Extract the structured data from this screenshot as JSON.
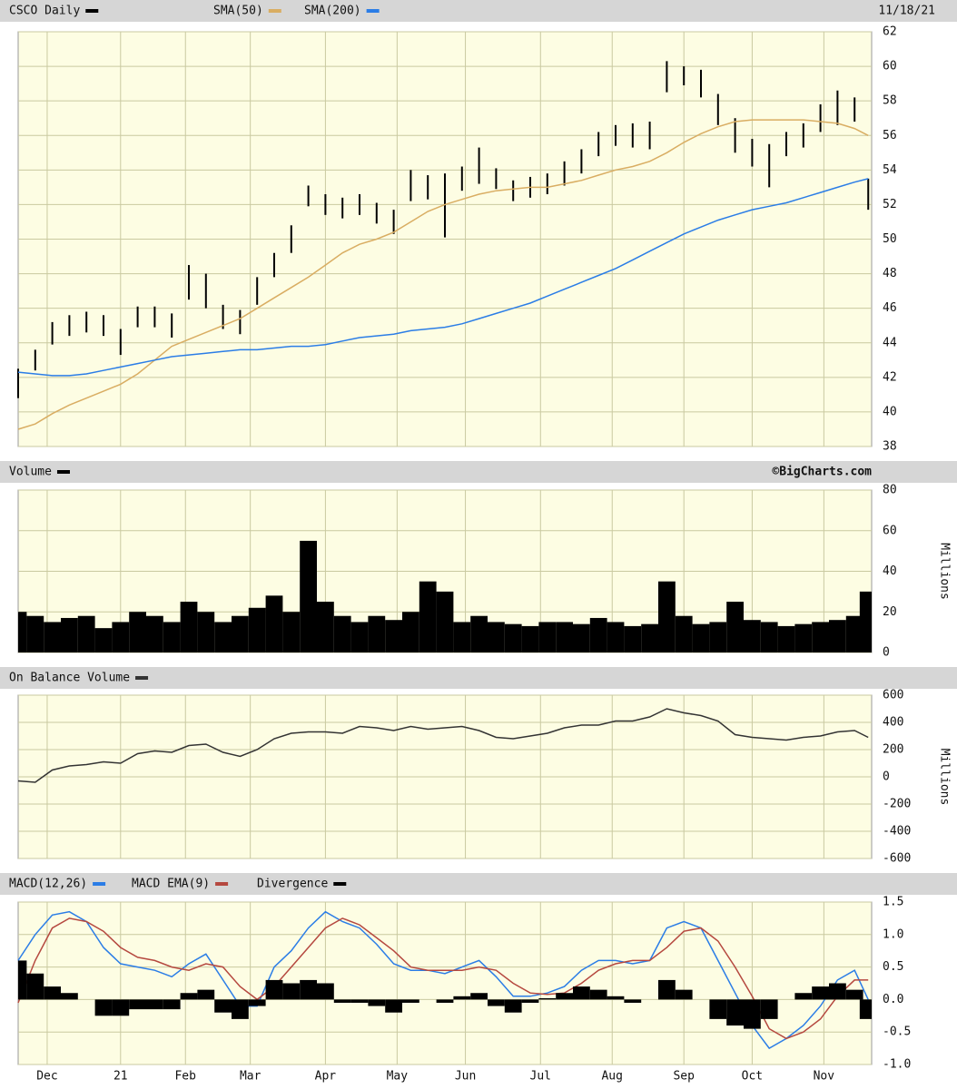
{
  "chart_data": [
    {
      "type": "ohlc",
      "date": "11/18/21",
      "xlim": [
        0,
        250
      ],
      "ylim": [
        38,
        62
      ],
      "yticks": [
        38,
        40,
        42,
        44,
        46,
        48,
        50,
        52,
        54,
        56,
        58,
        60,
        62
      ],
      "grid": true,
      "x": [
        0,
        5,
        10,
        15,
        20,
        25,
        30,
        35,
        40,
        45,
        50,
        55,
        60,
        65,
        70,
        75,
        80,
        85,
        90,
        95,
        100,
        105,
        110,
        115,
        120,
        125,
        130,
        135,
        140,
        145,
        150,
        155,
        160,
        165,
        170,
        175,
        180,
        185,
        190,
        195,
        200,
        205,
        210,
        215,
        220,
        225,
        230,
        235,
        240,
        245,
        249
      ],
      "series": [
        {
          "name": "CSCO Daily",
          "kind": "range",
          "color": "#000000",
          "high": [
            42.5,
            43.6,
            45.2,
            45.6,
            45.8,
            45.6,
            44.8,
            46.1,
            46.1,
            45.7,
            48.5,
            48,
            46.2,
            45.9,
            47.8,
            49.2,
            50.8,
            53.1,
            52.6,
            52.4,
            52.6,
            52.1,
            51.7,
            54.0,
            53.7,
            53.8,
            54.2,
            55.3,
            54.1,
            53.4,
            53.6,
            53.8,
            54.5,
            55.2,
            56.2,
            56.6,
            56.7,
            56.8,
            60.3,
            60,
            59.8,
            58.4,
            57,
            55.8,
            55.5,
            56.2,
            56.7,
            57.8,
            58.6,
            58.2,
            53.5
          ],
          "low": [
            40.8,
            42.4,
            43.9,
            44.4,
            44.6,
            44.4,
            43.3,
            44.9,
            44.9,
            44.3,
            46.5,
            46,
            44.8,
            44.5,
            46.2,
            47.8,
            49.2,
            51.9,
            51.4,
            51.2,
            51.4,
            50.9,
            50.3,
            52.2,
            52.3,
            50.1,
            52.8,
            53.2,
            52.9,
            52.2,
            52.4,
            52.6,
            53.1,
            53.8,
            54.8,
            55.4,
            55.3,
            55.2,
            58.5,
            58.9,
            58.2,
            56.6,
            55,
            54.2,
            53,
            54.8,
            55.3,
            56.2,
            56.6,
            56.8,
            51.7
          ]
        },
        {
          "name": "SMA(50)",
          "kind": "line",
          "color": "#d9ad62",
          "values": [
            39.0,
            39.3,
            39.9,
            40.4,
            40.8,
            41.2,
            41.6,
            42.2,
            43.0,
            43.8,
            44.2,
            44.6,
            45.0,
            45.4,
            46.0,
            46.6,
            47.2,
            47.8,
            48.5,
            49.2,
            49.7,
            50.0,
            50.4,
            51.0,
            51.6,
            52.0,
            52.3,
            52.6,
            52.8,
            52.9,
            53.0,
            53.0,
            53.2,
            53.4,
            53.7,
            54.0,
            54.2,
            54.5,
            55.0,
            55.6,
            56.1,
            56.5,
            56.8,
            56.9,
            56.9,
            56.9,
            56.9,
            56.8,
            56.7,
            56.4,
            56.0
          ]
        },
        {
          "name": "SMA(200)",
          "kind": "line",
          "color": "#2b7de6",
          "values": [
            42.3,
            42.2,
            42.1,
            42.1,
            42.2,
            42.4,
            42.6,
            42.8,
            43.0,
            43.2,
            43.3,
            43.4,
            43.5,
            43.6,
            43.6,
            43.7,
            43.8,
            43.8,
            43.9,
            44.1,
            44.3,
            44.4,
            44.5,
            44.7,
            44.8,
            44.9,
            45.1,
            45.4,
            45.7,
            46.0,
            46.3,
            46.7,
            47.1,
            47.5,
            47.9,
            48.3,
            48.8,
            49.3,
            49.8,
            50.3,
            50.7,
            51.1,
            51.4,
            51.7,
            51.9,
            52.1,
            52.4,
            52.7,
            53.0,
            53.3,
            53.5
          ]
        }
      ]
    },
    {
      "type": "bar",
      "credit": "©BigCharts.com",
      "y_label": "Millions",
      "xlim": [
        0,
        250
      ],
      "ylim": [
        0,
        80
      ],
      "yticks": [
        0,
        20,
        40,
        60,
        80
      ],
      "grid": true,
      "x": [
        0,
        5,
        10,
        15,
        20,
        25,
        30,
        35,
        40,
        45,
        50,
        55,
        60,
        65,
        70,
        75,
        80,
        85,
        90,
        95,
        100,
        105,
        110,
        115,
        120,
        125,
        130,
        135,
        140,
        145,
        150,
        155,
        160,
        165,
        170,
        175,
        180,
        185,
        190,
        195,
        200,
        205,
        210,
        215,
        220,
        225,
        230,
        235,
        240,
        245,
        249
      ],
      "series": [
        {
          "name": "Volume",
          "kind": "bar",
          "color": "#000000",
          "values": [
            20,
            18,
            15,
            17,
            18,
            12,
            15,
            20,
            18,
            15,
            25,
            20,
            15,
            18,
            22,
            28,
            20,
            55,
            25,
            18,
            15,
            18,
            16,
            20,
            35,
            30,
            15,
            18,
            15,
            14,
            13,
            15,
            15,
            14,
            17,
            15,
            13,
            14,
            35,
            18,
            14,
            15,
            25,
            16,
            15,
            13,
            14,
            15,
            16,
            18,
            30
          ]
        }
      ]
    },
    {
      "type": "line",
      "y_label": "Millions",
      "xlim": [
        0,
        250
      ],
      "ylim": [
        -600,
        600
      ],
      "yticks": [
        -600,
        -400,
        -200,
        0,
        200,
        400,
        600
      ],
      "grid": true,
      "x": [
        0,
        5,
        10,
        15,
        20,
        25,
        30,
        35,
        40,
        45,
        50,
        55,
        60,
        65,
        70,
        75,
        80,
        85,
        90,
        95,
        100,
        105,
        110,
        115,
        120,
        125,
        130,
        135,
        140,
        145,
        150,
        155,
        160,
        165,
        170,
        175,
        180,
        185,
        190,
        195,
        200,
        205,
        210,
        215,
        220,
        225,
        230,
        235,
        240,
        245,
        249
      ],
      "series": [
        {
          "name": "On Balance Volume",
          "kind": "line",
          "color": "#333333",
          "values": [
            -30,
            -40,
            50,
            80,
            90,
            110,
            100,
            170,
            190,
            180,
            230,
            240,
            180,
            150,
            200,
            280,
            320,
            330,
            330,
            320,
            370,
            360,
            340,
            370,
            350,
            360,
            370,
            340,
            290,
            280,
            300,
            320,
            360,
            380,
            380,
            410,
            410,
            440,
            500,
            470,
            450,
            410,
            310,
            290,
            280,
            270,
            290,
            300,
            330,
            340,
            290
          ]
        }
      ]
    },
    {
      "type": "line",
      "xlim": [
        0,
        250
      ],
      "ylim": [
        -1.0,
        1.5
      ],
      "yticks": [
        {
          "value": -1.0,
          "label": "-1.0"
        },
        -0.5,
        {
          "value": 0,
          "label": "0.0"
        },
        0.5,
        {
          "value": 1.0,
          "label": "1.0"
        },
        1.5
      ],
      "grid": true,
      "xticks": [
        {
          "value": 8.5,
          "label": "Dec"
        },
        {
          "value": 30,
          "label": "21"
        },
        {
          "value": 49,
          "label": "Feb"
        },
        {
          "value": 68,
          "label": "Mar"
        },
        {
          "value": 90,
          "label": "Apr"
        },
        {
          "value": 111,
          "label": "May"
        },
        {
          "value": 131,
          "label": "Jun"
        },
        {
          "value": 153,
          "label": "Jul"
        },
        {
          "value": 174,
          "label": "Aug"
        },
        {
          "value": 195,
          "label": "Sep"
        },
        {
          "value": 215,
          "label": "Oct"
        },
        {
          "value": 236,
          "label": "Nov"
        }
      ],
      "x": [
        0,
        5,
        10,
        15,
        20,
        25,
        30,
        35,
        40,
        45,
        50,
        55,
        60,
        65,
        70,
        75,
        80,
        85,
        90,
        95,
        100,
        105,
        110,
        115,
        120,
        125,
        130,
        135,
        140,
        145,
        150,
        155,
        160,
        165,
        170,
        175,
        180,
        185,
        190,
        195,
        200,
        205,
        210,
        215,
        220,
        225,
        230,
        235,
        240,
        245,
        249
      ],
      "series": [
        {
          "name": "MACD(12,26)",
          "kind": "line",
          "color": "#2b7de6",
          "values": [
            0.6,
            1.0,
            1.3,
            1.35,
            1.2,
            0.8,
            0.55,
            0.5,
            0.45,
            0.35,
            0.55,
            0.7,
            0.3,
            -0.1,
            -0.1,
            0.5,
            0.75,
            1.1,
            1.35,
            1.2,
            1.1,
            0.85,
            0.55,
            0.45,
            0.45,
            0.4,
            0.5,
            0.6,
            0.35,
            0.05,
            0.05,
            0.1,
            0.2,
            0.45,
            0.6,
            0.6,
            0.55,
            0.6,
            1.1,
            1.2,
            1.1,
            0.6,
            0.1,
            -0.4,
            -0.75,
            -0.6,
            -0.4,
            -0.1,
            0.3,
            0.45,
            0.0
          ]
        },
        {
          "name": "MACD EMA(9)",
          "kind": "line",
          "color": "#b5483f",
          "values": [
            -0.05,
            0.6,
            1.1,
            1.25,
            1.2,
            1.05,
            0.8,
            0.65,
            0.6,
            0.5,
            0.45,
            0.55,
            0.5,
            0.2,
            0.0,
            0.2,
            0.5,
            0.8,
            1.1,
            1.25,
            1.15,
            0.95,
            0.75,
            0.5,
            0.45,
            0.45,
            0.45,
            0.5,
            0.45,
            0.25,
            0.1,
            0.08,
            0.1,
            0.25,
            0.45,
            0.55,
            0.6,
            0.6,
            0.8,
            1.05,
            1.1,
            0.9,
            0.5,
            0.05,
            -0.45,
            -0.6,
            -0.5,
            -0.3,
            0.05,
            0.3,
            0.3
          ]
        },
        {
          "name": "Divergence",
          "kind": "bar",
          "color": "#000000",
          "values": [
            0.6,
            0.4,
            0.2,
            0.1,
            0,
            -0.25,
            -0.25,
            -0.15,
            -0.15,
            -0.15,
            0.1,
            0.15,
            -0.2,
            -0.3,
            -0.1,
            0.3,
            0.25,
            0.3,
            0.25,
            -0.05,
            -0.05,
            -0.1,
            -0.2,
            -0.05,
            0,
            -0.05,
            0.05,
            0.1,
            -0.1,
            -0.2,
            -0.05,
            0.02,
            0.1,
            0.2,
            0.15,
            0.05,
            -0.05,
            0,
            0.3,
            0.15,
            0,
            -0.3,
            -0.4,
            -0.45,
            -0.3,
            0,
            0.1,
            0.2,
            0.25,
            0.15,
            -0.3
          ]
        }
      ]
    }
  ]
}
